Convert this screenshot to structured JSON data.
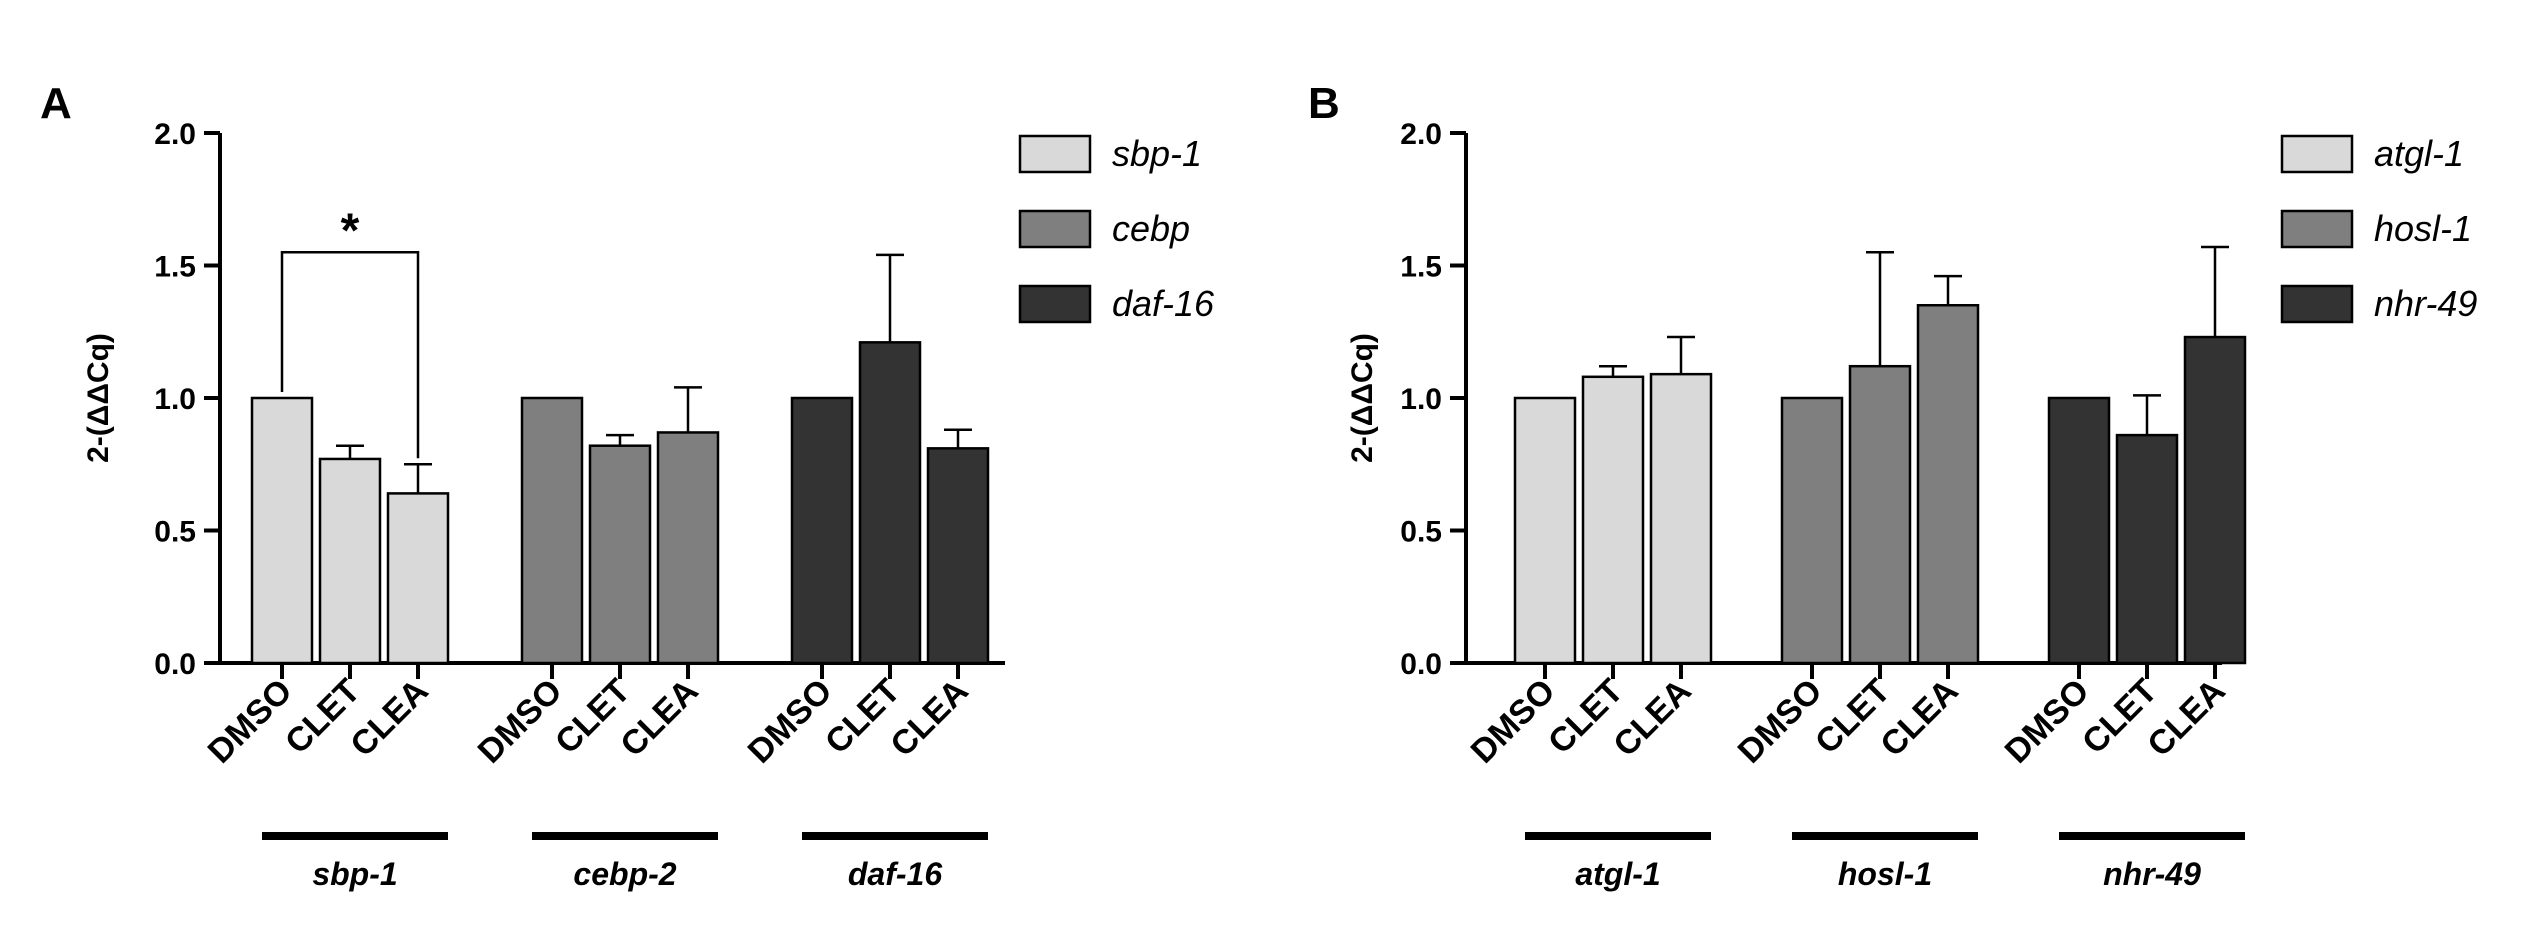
{
  "chart_data": [
    {
      "type": "bar",
      "panel_label": "A",
      "ylabel": "2-(ΔΔCq)",
      "ylim": [
        0,
        2.0
      ],
      "yticks": [
        "0.0",
        "0.5",
        "1.0",
        "1.5",
        "2.0"
      ],
      "ytick_values": [
        0,
        0.5,
        1.0,
        1.5,
        2.0
      ],
      "categories": [
        "DMSO",
        "CLET",
        "CLEA"
      ],
      "groups": [
        {
          "name": "sbp-1",
          "color": "#d9d9d9",
          "values": [
            1.0,
            0.77,
            0.64
          ],
          "errors": [
            0,
            0.05,
            0.11
          ]
        },
        {
          "name": "cebp-2",
          "color": "#7f7f7f",
          "values": [
            1.0,
            0.82,
            0.87
          ],
          "errors": [
            0,
            0.04,
            0.17
          ]
        },
        {
          "name": "daf-16",
          "color": "#333333",
          "values": [
            1.0,
            1.21,
            0.81
          ],
          "errors": [
            0,
            0.33,
            0.07
          ]
        }
      ],
      "legend": [
        {
          "label": "sbp-1",
          "color": "#d9d9d9"
        },
        {
          "label": "cebp",
          "color": "#7f7f7f"
        },
        {
          "label": "daf-16",
          "color": "#333333"
        }
      ],
      "significance": [
        {
          "group": 0,
          "from": 0,
          "to": 2,
          "label": "*",
          "level": 1.55
        }
      ]
    },
    {
      "type": "bar",
      "panel_label": "B",
      "ylabel": "2-(ΔΔCq)",
      "ylim": [
        0,
        2.0
      ],
      "yticks": [
        "0.0",
        "0.5",
        "1.0",
        "1.5",
        "2.0"
      ],
      "ytick_values": [
        0,
        0.5,
        1.0,
        1.5,
        2.0
      ],
      "categories": [
        "DMSO",
        "CLET",
        "CLEA"
      ],
      "groups": [
        {
          "name": "atgl-1",
          "color": "#d9d9d9",
          "values": [
            1.0,
            1.08,
            1.09
          ],
          "errors": [
            0,
            0.04,
            0.14
          ]
        },
        {
          "name": "hosl-1",
          "color": "#7f7f7f",
          "values": [
            1.0,
            1.12,
            1.35
          ],
          "errors": [
            0,
            0.43,
            0.11
          ]
        },
        {
          "name": "nhr-49",
          "color": "#333333",
          "values": [
            1.0,
            0.86,
            1.23
          ],
          "errors": [
            0,
            0.15,
            0.34
          ]
        }
      ],
      "legend": [
        {
          "label": "atgl-1",
          "color": "#d9d9d9"
        },
        {
          "label": "hosl-1",
          "color": "#7f7f7f"
        },
        {
          "label": "nhr-49",
          "color": "#333333"
        }
      ],
      "significance": []
    }
  ]
}
